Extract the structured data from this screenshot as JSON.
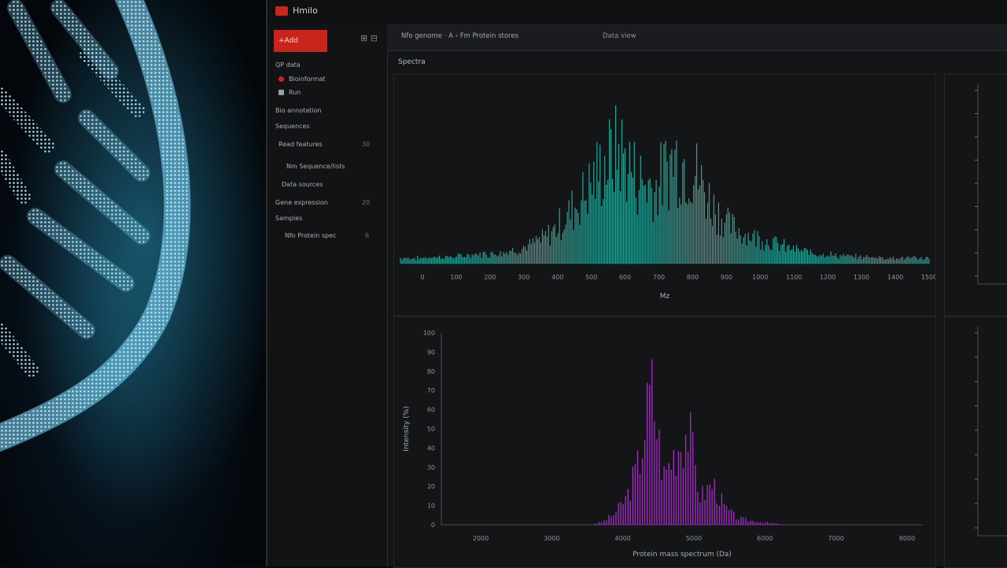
{
  "window": {
    "title": "Hmilo"
  },
  "sidebar": {
    "new_button": "+Add",
    "ctl": "⊞ ⊟",
    "items": [
      {
        "label": "QP data",
        "count": ""
      },
      {
        "label": "Bioinformat",
        "count": ""
      },
      {
        "label": "Run",
        "count": ""
      },
      {
        "label": "Bio annotation",
        "count": ""
      },
      {
        "label": "Sequences",
        "count": ""
      },
      {
        "label": "Read features",
        "count": "30"
      },
      {
        "label": "Nm  Sequence/lists",
        "count": ""
      },
      {
        "label": "Data sources",
        "count": ""
      },
      {
        "label": "Gene expression",
        "count": "20"
      },
      {
        "label": "Samples",
        "count": ""
      },
      {
        "label": "Nfo  Protein spec",
        "count": "6"
      }
    ]
  },
  "toolbar": {
    "path": "Nfo genome  ·  A ›  Fm Protein stores",
    "meta": "Data view"
  },
  "section": {
    "label": "Spectra"
  },
  "colors": {
    "teal": "#2fbdb0",
    "magenta": "#b12ad6",
    "accent": "#c9251c"
  },
  "chart_data": [
    {
      "type": "area",
      "title": "",
      "xlabel": "Mz",
      "ylabel": "",
      "xlim": [
        0,
        1500
      ],
      "x_ticks": [
        "0",
        "100",
        "200",
        "300",
        "400",
        "500",
        "600",
        "700",
        "800",
        "900",
        "1000",
        "1100",
        "1200",
        "1300",
        "1400",
        "1500"
      ],
      "series": [
        {
          "values": [
            0.02,
            0.02,
            0.03,
            0.03,
            0.05,
            0.06,
            0.08,
            0.12,
            0.2,
            0.35,
            0.55,
            0.78,
            0.95,
            0.7,
            0.62,
            0.88,
            0.8,
            0.5,
            0.3,
            0.22,
            0.18,
            0.12,
            0.08,
            0.06,
            0.04,
            0.03,
            0.03,
            0.02,
            0.02,
            0.02
          ]
        }
      ]
    },
    {
      "type": "area",
      "title": "",
      "xlabel": "Protein mass spectrum (Da)",
      "ylabel": "Intensity (%)",
      "ylim": [
        0,
        100
      ],
      "y_ticks": [
        "0",
        "10",
        "20",
        "30",
        "40",
        "50",
        "60",
        "70",
        "80",
        "90",
        "100"
      ],
      "x_ticks": [
        "2000",
        "3000",
        "4000",
        "5000",
        "6000",
        "7000",
        "8000"
      ],
      "series": [
        {
          "values": [
            0,
            0,
            0,
            0,
            0,
            0,
            0,
            0,
            0,
            0,
            0,
            0,
            0,
            0.02,
            0.08,
            0.2,
            0.45,
            1.0,
            0.35,
            0.55,
            0.7,
            0.2,
            0.3,
            0.12,
            0.05,
            0.03,
            0.02,
            0.01,
            0,
            0,
            0,
            0,
            0,
            0,
            0,
            0,
            0,
            0,
            0,
            0
          ]
        }
      ]
    }
  ]
}
